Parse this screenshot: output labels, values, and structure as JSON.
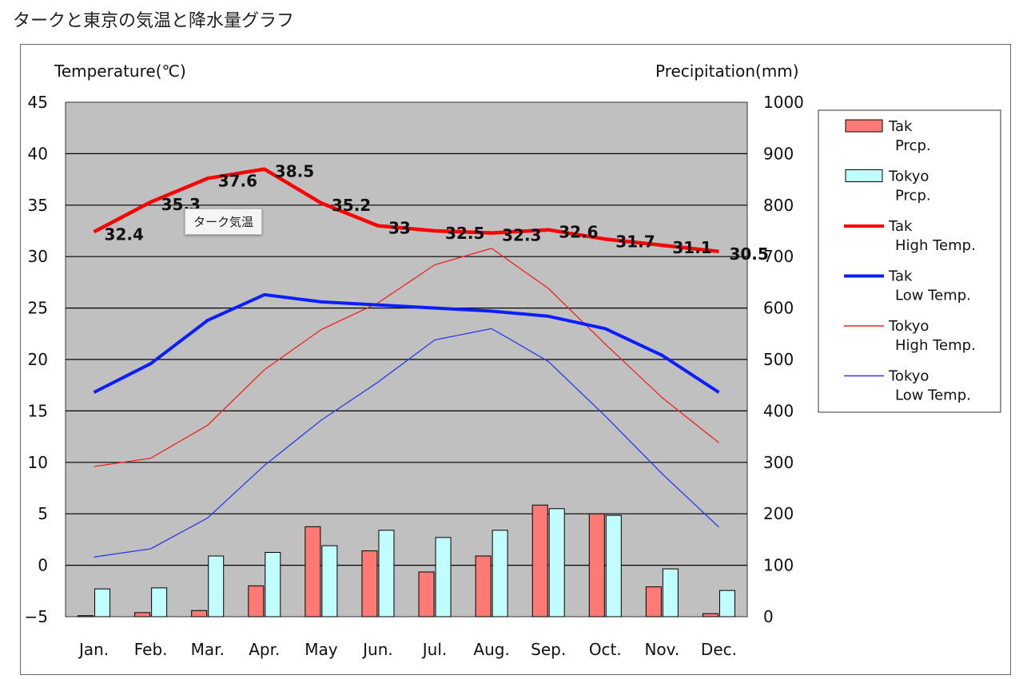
{
  "page": {
    "title": "タークと東京の気温と降水量グラフ"
  },
  "tooltip": {
    "text": "ターク気温"
  },
  "chart_data": {
    "type": "bar",
    "categories": [
      "Jan.",
      "Feb.",
      "Mar.",
      "Apr.",
      "May",
      "Jun.",
      "Jul.",
      "Aug.",
      "Sep.",
      "Oct.",
      "Nov.",
      "Dec."
    ],
    "y_left": {
      "label": "Temperature(℃)",
      "range": [
        -5,
        45
      ],
      "ticks": [
        45,
        40,
        35,
        30,
        25,
        20,
        15,
        10,
        5,
        0,
        -5
      ],
      "tick_labels": [
        "45",
        "40",
        "35",
        "30",
        "25",
        "20",
        "15",
        "10",
        "5",
        "0",
        "−5"
      ]
    },
    "y_right": {
      "label": "Precipitation(mm)",
      "range": [
        0,
        1000
      ],
      "ticks": [
        1000,
        900,
        800,
        700,
        600,
        500,
        400,
        300,
        200,
        100,
        0
      ]
    },
    "grid": true,
    "legend_position": "right",
    "colors": {
      "plot_bg": "#c0c0c0",
      "tak_prcp": "#ff7a74",
      "tokyo_prcp": "#c2fdfd",
      "tak_high": "#ff0000",
      "tak_low": "#0a1eff",
      "tokyo_high": "#ee2222",
      "tokyo_low": "#2a3ce8"
    },
    "legend": [
      {
        "line1": "Tak",
        "line2": "Prcp."
      },
      {
        "line1": "Tokyo",
        "line2": "Prcp."
      },
      {
        "line1": "Tak",
        "line2": "High Temp."
      },
      {
        "line1": "Tak",
        "line2": "Low Temp."
      },
      {
        "line1": "Tokyo",
        "line2": "High Temp."
      },
      {
        "line1": "Tokyo",
        "line2": "Low Temp."
      }
    ],
    "series": [
      {
        "name": "Tak Prcp.",
        "kind": "bar",
        "axis": "right",
        "values": [
          2,
          8,
          12,
          60,
          175,
          128,
          87,
          118,
          217,
          200,
          58,
          6
        ]
      },
      {
        "name": "Tokyo Prcp.",
        "kind": "bar",
        "axis": "right",
        "values": [
          54,
          56,
          118,
          125,
          138,
          168,
          154,
          168,
          210,
          197,
          93,
          51
        ]
      },
      {
        "name": "Tak High Temp.",
        "kind": "line",
        "axis": "left",
        "values": [
          32.4,
          35.3,
          37.6,
          38.5,
          35.2,
          33,
          32.5,
          32.3,
          32.6,
          31.7,
          31.1,
          30.5
        ],
        "labels": [
          "32.4",
          "35.3",
          "37.6",
          "38.5",
          "35.2",
          "33",
          "32.5",
          "32.3",
          "32.6",
          "31.7",
          "31.1",
          "30.5"
        ]
      },
      {
        "name": "Tak Low Temp.",
        "kind": "line",
        "axis": "left",
        "values": [
          16.8,
          19.6,
          23.8,
          26.3,
          25.6,
          25.3,
          25.0,
          24.7,
          24.2,
          23.0,
          20.4,
          16.8
        ]
      },
      {
        "name": "Tokyo High Temp.",
        "kind": "line",
        "axis": "left",
        "values": [
          9.6,
          10.4,
          13.6,
          19.0,
          22.9,
          25.5,
          29.2,
          30.8,
          26.9,
          21.5,
          16.3,
          11.9
        ]
      },
      {
        "name": "Tokyo Low Temp.",
        "kind": "line",
        "axis": "left",
        "values": [
          0.8,
          1.6,
          4.6,
          9.7,
          14.1,
          17.8,
          21.9,
          23.0,
          19.8,
          14.5,
          8.9,
          3.7
        ]
      }
    ]
  }
}
